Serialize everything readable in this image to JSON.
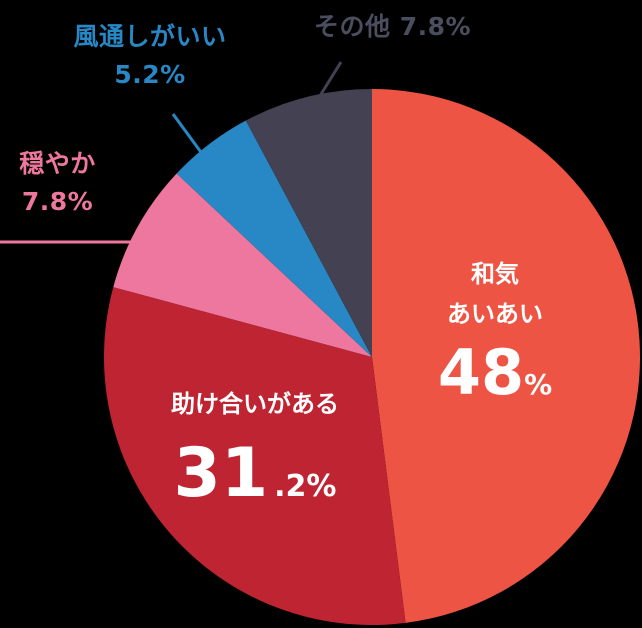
{
  "chart_data": {
    "type": "pie",
    "title": "",
    "start_angle_deg": 0,
    "direction": "clockwise",
    "slices": [
      {
        "label": "和気あいあい",
        "value": 48.0,
        "display": "48%",
        "color": "#EE5443"
      },
      {
        "label": "助け合いがある",
        "value": 31.2,
        "display": "31.2%",
        "color": "#BE2431"
      },
      {
        "label": "穏やか",
        "value": 7.8,
        "display": "7.8%",
        "color": "#EE77A0"
      },
      {
        "label": "風通しがいい",
        "value": 5.2,
        "display": "5.2%",
        "color": "#2788C5"
      },
      {
        "label": "その他",
        "value": 7.8,
        "display": "7.8%",
        "color": "#434152"
      }
    ]
  },
  "labels": {
    "wakiaiai": {
      "line1": "和気",
      "line2": "あいあい",
      "number": "48",
      "unit": "%"
    },
    "tasukeai": {
      "name": "助け合いがある",
      "number": "31",
      "decimal": ".2%"
    },
    "odayaka": {
      "name": "穏やか",
      "value": "7.8%"
    },
    "kazetoshi": {
      "name": "風通しがいい",
      "value": "5.2%"
    },
    "sonota": {
      "text": "その他 7.8%"
    }
  },
  "colors": {
    "background": "#000000",
    "wakiaiai": "#EE5443",
    "tasukeai": "#BE2431",
    "odayaka": "#EE77A0",
    "kazetoshi": "#2788C5",
    "sonota": "#434152",
    "sonota_label": "#4A4E5E"
  }
}
